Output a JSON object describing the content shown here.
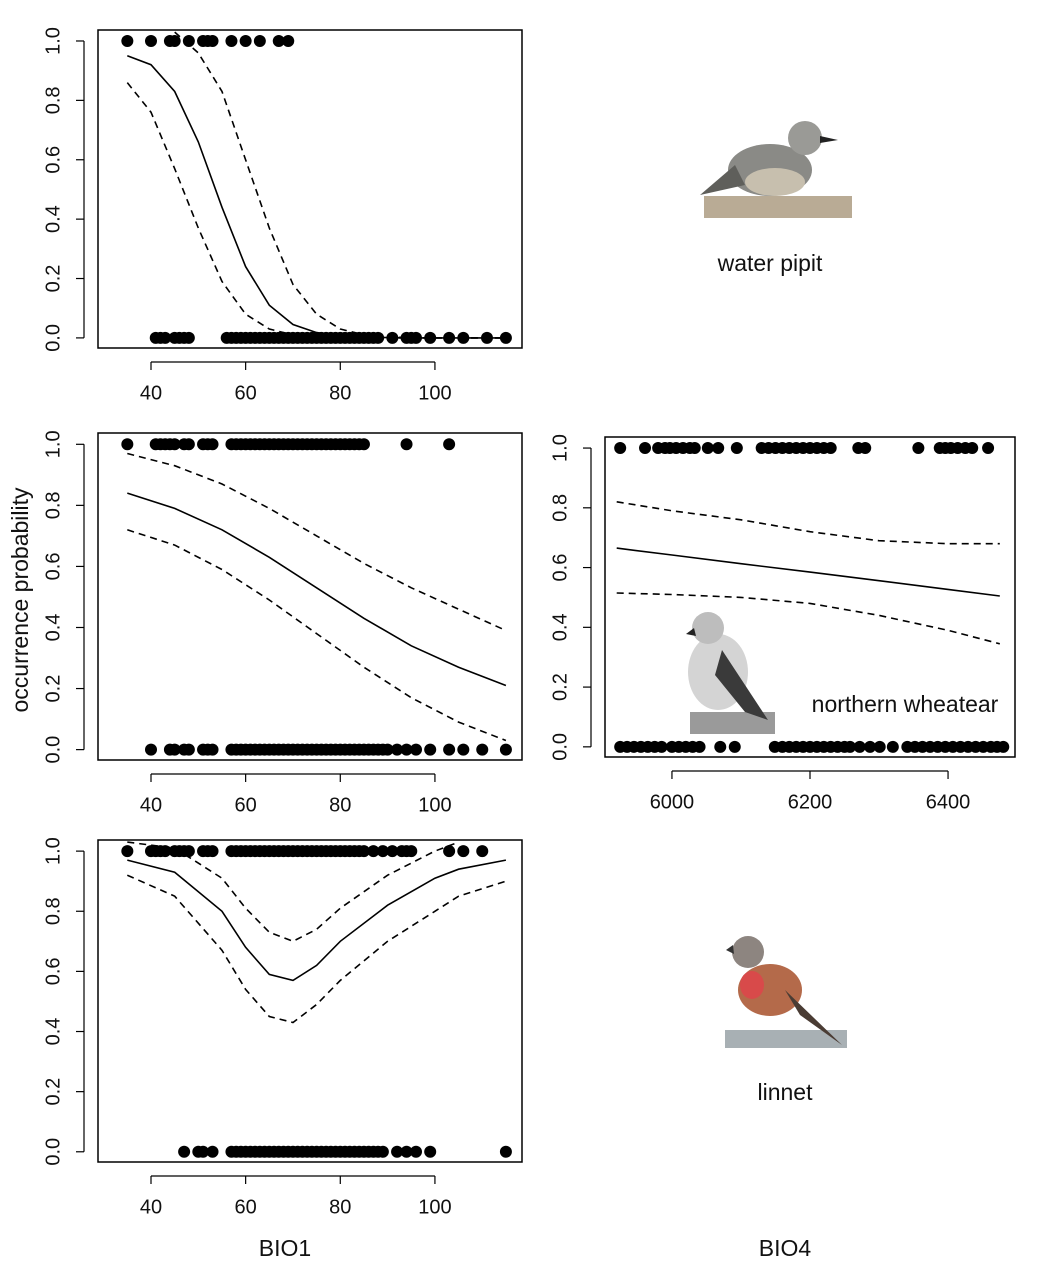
{
  "chart_data": [
    {
      "type": "line",
      "annotation": "water pipit",
      "xlim": [
        28.8,
        118.4
      ],
      "ylim": [
        -0.034,
        1.037
      ],
      "xticks": [
        40,
        60,
        80,
        100
      ],
      "yticks": [
        {
          "value": 0,
          "label": "0.0"
        },
        0.2,
        0.4,
        0.6,
        0.8,
        {
          "value": 1,
          "label": "1.0"
        }
      ],
      "x": [
        35,
        40,
        45,
        50,
        55,
        60,
        65,
        70,
        75,
        80,
        85,
        90,
        95,
        100,
        105,
        110,
        115
      ],
      "series": [
        {
          "color": "#000000",
          "style": "solid",
          "values": [
            0.95,
            0.92,
            0.83,
            0.66,
            0.44,
            0.24,
            0.11,
            0.045,
            0.018,
            0.007,
            0.003,
            0.001,
            0.0,
            0.0,
            0.0,
            0.0,
            0.0
          ]
        },
        {
          "color": "#000000",
          "style": "dashed",
          "values": [
            null,
            null,
            1.03,
            0.96,
            0.83,
            0.6,
            0.37,
            0.18,
            0.08,
            0.03,
            0.01,
            0.003,
            0.001,
            0.0,
            0.0,
            0.0,
            0.0
          ]
        },
        {
          "color": "#000000",
          "style": "dashed",
          "values": [
            0.86,
            0.76,
            0.57,
            0.37,
            0.19,
            0.08,
            0.03,
            0.01,
            0.003,
            0.001,
            0.0,
            0.0,
            0.0,
            0.0,
            0.0,
            0.0,
            0.0
          ]
        }
      ],
      "points": [
        {
          "y": 1,
          "x": [
            35,
            40,
            44,
            45,
            48,
            51,
            52,
            53,
            57,
            60,
            63,
            67,
            69
          ]
        },
        {
          "y": 0,
          "x": [
            41,
            42,
            43,
            45,
            46,
            47,
            48,
            56,
            57,
            58,
            59,
            60,
            61,
            62,
            63,
            64,
            65,
            66,
            67,
            68,
            69,
            70,
            71,
            72,
            73,
            74,
            75,
            76,
            77,
            78,
            79,
            80,
            81,
            82,
            83,
            84,
            85,
            86,
            87,
            88,
            91,
            94,
            95,
            96,
            99,
            103,
            106,
            111,
            115
          ]
        }
      ]
    },
    {
      "type": "line",
      "ylabel": "occurrence probability",
      "xlim": [
        28.8,
        118.4
      ],
      "ylim": [
        -0.034,
        1.037
      ],
      "xticks": [
        40,
        60,
        80,
        100
      ],
      "yticks": [
        {
          "value": 0,
          "label": "0.0"
        },
        0.2,
        0.4,
        0.6,
        0.8,
        {
          "value": 1,
          "label": "1.0"
        }
      ],
      "x": [
        35,
        45,
        55,
        65,
        75,
        85,
        95,
        105,
        115
      ],
      "series": [
        {
          "color": "#000000",
          "style": "solid",
          "values": [
            0.84,
            0.79,
            0.72,
            0.63,
            0.53,
            0.43,
            0.34,
            0.27,
            0.21
          ]
        },
        {
          "color": "#000000",
          "style": "dashed",
          "values": [
            0.97,
            0.93,
            0.87,
            0.79,
            0.7,
            0.61,
            0.53,
            0.46,
            0.39
          ]
        },
        {
          "color": "#000000",
          "style": "dashed",
          "values": [
            0.72,
            0.67,
            0.59,
            0.49,
            0.38,
            0.27,
            0.17,
            0.09,
            0.03
          ]
        }
      ],
      "points": [
        {
          "y": 1,
          "x": [
            35,
            41,
            42,
            43,
            44,
            45,
            47,
            48,
            51,
            52,
            53,
            57,
            58,
            59,
            60,
            61,
            62,
            63,
            64,
            65,
            66,
            67,
            68,
            69,
            70,
            71,
            72,
            73,
            74,
            75,
            76,
            77,
            78,
            79,
            80,
            81,
            82,
            83,
            84,
            85,
            94,
            103
          ]
        },
        {
          "y": 0,
          "x": [
            40,
            44,
            45,
            47,
            48,
            51,
            52,
            53,
            57,
            58,
            59,
            60,
            61,
            62,
            63,
            64,
            65,
            66,
            67,
            68,
            69,
            70,
            71,
            72,
            73,
            74,
            75,
            76,
            77,
            78,
            79,
            80,
            81,
            82,
            83,
            84,
            85,
            86,
            87,
            88,
            89,
            90,
            92,
            94,
            96,
            99,
            103,
            106,
            110,
            115
          ]
        }
      ]
    },
    {
      "type": "line",
      "annotation": "northern wheatear",
      "xlabel": "BIO4",
      "xlim": [
        5903,
        6497
      ],
      "ylim": [
        -0.034,
        1.037
      ],
      "xticks": [
        6000,
        6200,
        6400
      ],
      "yticks": [
        {
          "value": 0,
          "label": "0.0"
        },
        0.2,
        0.4,
        0.6,
        0.8,
        {
          "value": 1,
          "label": "1.0"
        }
      ],
      "x": [
        5920,
        6000,
        6100,
        6200,
        6300,
        6400,
        6475
      ],
      "series": [
        {
          "color": "#000000",
          "style": "solid",
          "values": [
            0.665,
            0.642,
            0.613,
            0.585,
            0.556,
            0.527,
            0.505
          ]
        },
        {
          "color": "#000000",
          "style": "dashed",
          "values": [
            0.82,
            0.79,
            0.76,
            0.72,
            0.69,
            0.68,
            0.68
          ]
        },
        {
          "color": "#000000",
          "style": "dashed",
          "values": [
            0.515,
            0.51,
            0.5,
            0.48,
            0.44,
            0.39,
            0.345
          ]
        }
      ],
      "points": [
        {
          "y": 1,
          "x": [
            5925,
            5961,
            5980,
            5990,
            5997,
            6006,
            6016,
            6026,
            6033,
            6052,
            6067,
            6094,
            6130,
            6140,
            6150,
            6160,
            6170,
            6180,
            6190,
            6200,
            6210,
            6220,
            6230,
            6270,
            6280,
            6357,
            6388,
            6396,
            6404,
            6414,
            6425,
            6435,
            6458
          ]
        },
        {
          "y": 0,
          "x": [
            5925,
            5935,
            5945,
            5955,
            5965,
            5975,
            5985,
            6000,
            6010,
            6020,
            6030,
            6040,
            6070,
            6091,
            6149,
            6160,
            6170,
            6180,
            6190,
            6200,
            6210,
            6220,
            6230,
            6240,
            6250,
            6258,
            6272,
            6287,
            6301,
            6320,
            6341,
            6352,
            6363,
            6374,
            6385,
            6396,
            6407,
            6418,
            6429,
            6440,
            6451,
            6462,
            6471,
            6480
          ]
        }
      ]
    },
    {
      "type": "line",
      "annotation": "linnet",
      "xlabel": "BIO1",
      "xlim": [
        28.8,
        118.4
      ],
      "ylim": [
        -0.034,
        1.037
      ],
      "xticks": [
        40,
        60,
        80,
        100
      ],
      "yticks": [
        {
          "value": 0,
          "label": "0.0"
        },
        0.2,
        0.4,
        0.6,
        0.8,
        {
          "value": 1,
          "label": "1.0"
        }
      ],
      "x": [
        35,
        45,
        55,
        60,
        65,
        70,
        75,
        80,
        90,
        100,
        105,
        115
      ],
      "series": [
        {
          "color": "#000000",
          "style": "solid",
          "values": [
            0.97,
            0.93,
            0.8,
            0.68,
            0.59,
            0.57,
            0.62,
            0.7,
            0.82,
            0.91,
            0.94,
            0.97
          ]
        },
        {
          "color": "#000000",
          "style": "dashed",
          "values": [
            1.03,
            1.01,
            0.91,
            0.81,
            0.73,
            0.7,
            0.74,
            0.81,
            0.92,
            1.0,
            1.03,
            null
          ]
        },
        {
          "color": "#000000",
          "style": "dashed",
          "values": [
            0.92,
            0.85,
            0.67,
            0.54,
            0.45,
            0.43,
            0.49,
            0.57,
            0.7,
            0.8,
            0.85,
            0.9
          ]
        }
      ],
      "points": [
        {
          "y": 1,
          "x": [
            35,
            40,
            41,
            42,
            43,
            45,
            46,
            47,
            48,
            51,
            52,
            53,
            57,
            58,
            59,
            60,
            61,
            62,
            63,
            64,
            65,
            66,
            67,
            68,
            69,
            70,
            71,
            72,
            73,
            74,
            75,
            76,
            77,
            78,
            79,
            80,
            81,
            82,
            83,
            84,
            85,
            87,
            89,
            91,
            93,
            94,
            95,
            103,
            106,
            110
          ]
        },
        {
          "y": 0,
          "x": [
            47,
            50,
            51,
            53,
            57,
            58,
            59,
            60,
            61,
            62,
            63,
            64,
            65,
            66,
            67,
            68,
            69,
            70,
            71,
            72,
            73,
            74,
            75,
            76,
            77,
            78,
            79,
            80,
            81,
            82,
            83,
            84,
            85,
            86,
            87,
            88,
            89,
            92,
            94,
            96,
            99,
            115
          ]
        }
      ]
    }
  ]
}
